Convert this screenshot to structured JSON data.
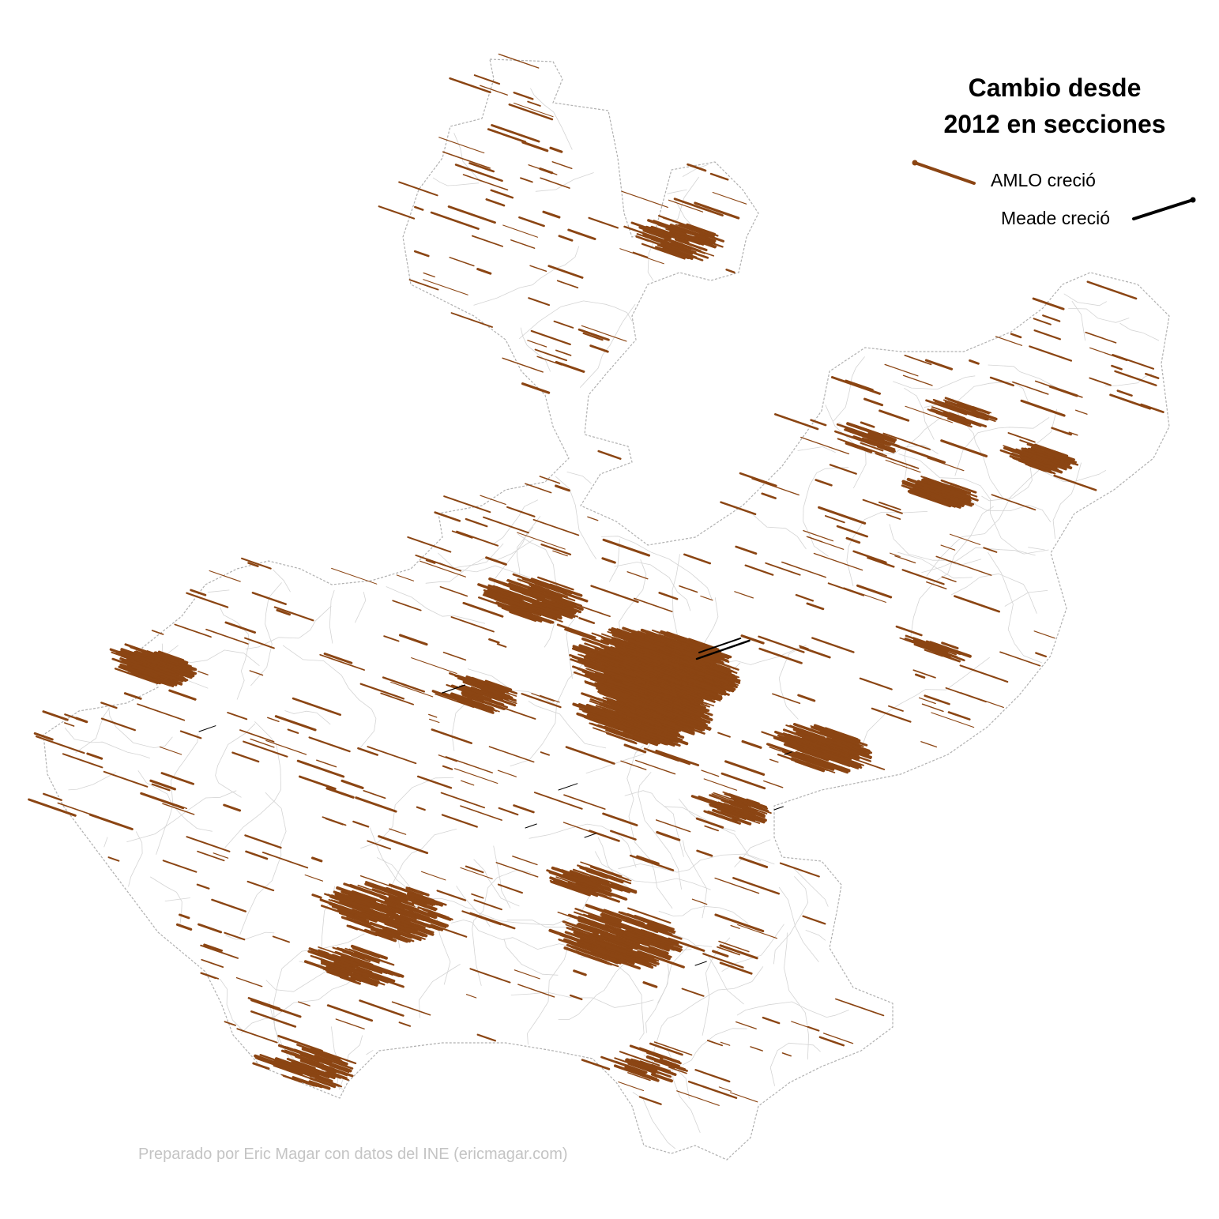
{
  "title": {
    "line1": "Cambio desde",
    "line2": "2012 en secciones"
  },
  "legend": {
    "amlo_label": "AMLO creció",
    "amlo_color": "#8B4513",
    "meade_label": "Meade creció",
    "meade_color": "#000000"
  },
  "credit": "Preparado por Eric Magar con datos del INE (ericmagar.com)",
  "map": {
    "region_border_color": "#b0b0b0",
    "municipal_line_color": "#d4d4d4",
    "arrow_direction_amlo": "toward upper-left",
    "arrow_direction_meade": "toward upper-right"
  }
}
